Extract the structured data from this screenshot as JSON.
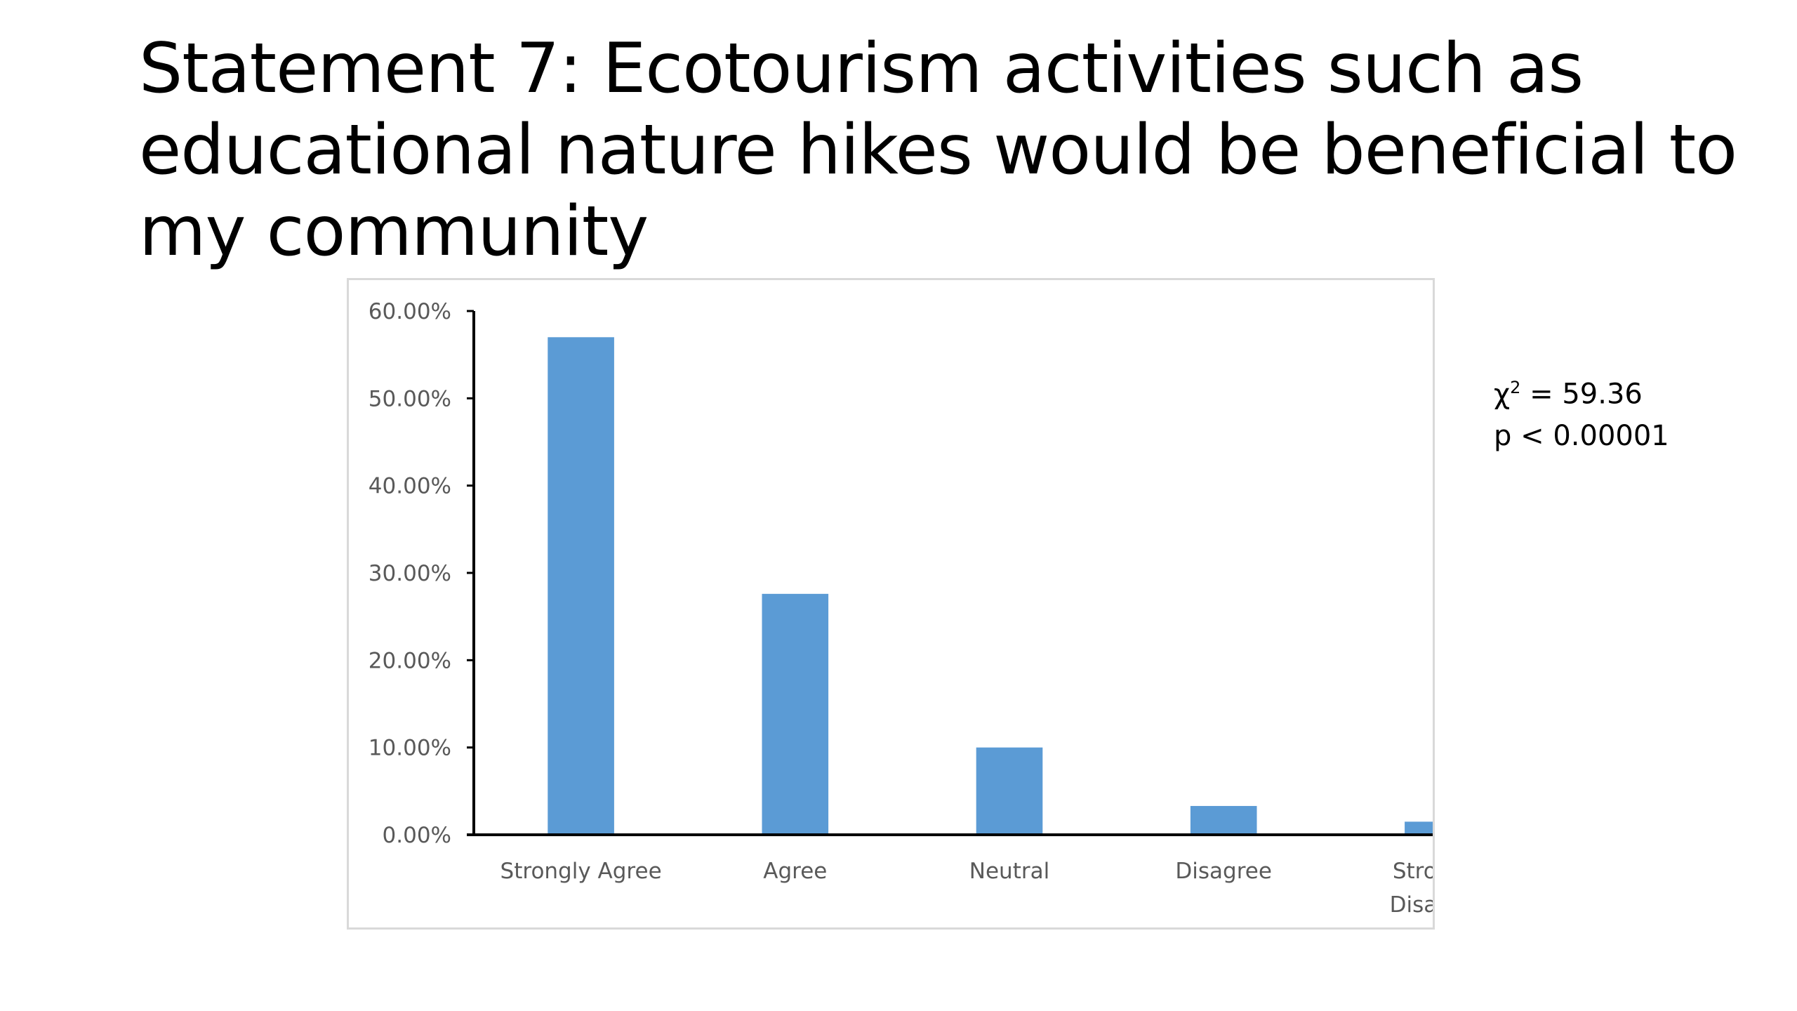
{
  "slide": {
    "title_lines": [
      "Statement 7: Ecotourism activities such as",
      "educational nature hikes would be beneficial to",
      "my community"
    ]
  },
  "stats": {
    "chi_symbol": "χ",
    "chi_exp": "2",
    "chi_value": " = 59.36",
    "p_text": "p < 0.00001"
  },
  "chart_data": {
    "type": "bar",
    "categories": [
      "Strongly Agree",
      "Agree",
      "Neutral",
      "Disagree",
      "Strongly Disagree"
    ],
    "category_lines": [
      [
        "Strongly Agree"
      ],
      [
        "Agree"
      ],
      [
        "Neutral"
      ],
      [
        "Disagree"
      ],
      [
        "Strongly",
        "Disagree"
      ]
    ],
    "values": [
      57.0,
      27.6,
      10.0,
      3.3,
      1.5
    ],
    "ylim": [
      0,
      60
    ],
    "yticks": [
      0,
      10,
      20,
      30,
      40,
      50,
      60
    ],
    "ytick_labels": [
      "0.00%",
      "10.00%",
      "20.00%",
      "30.00%",
      "40.00%",
      "50.00%",
      "60.00%"
    ],
    "title": "",
    "xlabel": "",
    "ylabel": "",
    "grid": false,
    "legend": "none",
    "colors": {
      "bar": "#5b9bd5",
      "axis": "#000000",
      "tick_text": "#595959"
    }
  }
}
